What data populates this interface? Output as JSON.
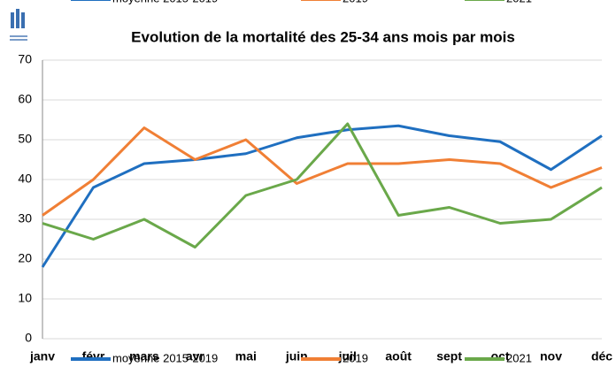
{
  "chart_data": {
    "type": "line",
    "title": "Evolution de la mortalité des 25-34 ans mois par mois",
    "categories": [
      "janv",
      "févr",
      "mars",
      "avr",
      "mai",
      "juin",
      "juil",
      "août",
      "sept",
      "oct",
      "nov",
      "déc"
    ],
    "series": [
      {
        "name": "moyenne 2015-2019",
        "color": "#1f6fc0",
        "values": [
          18,
          38,
          44,
          45,
          46.5,
          50.5,
          52.5,
          53.5,
          51,
          49.5,
          42.5,
          51
        ]
      },
      {
        "name": "2019",
        "color": "#f07f35",
        "values": [
          31,
          40,
          53,
          45,
          50,
          39,
          44,
          44,
          45,
          44,
          38,
          43
        ]
      },
      {
        "name": "2021",
        "color": "#6aa84a",
        "values": [
          29,
          25,
          30,
          23,
          36,
          40,
          54,
          31,
          33,
          29,
          30,
          38
        ]
      }
    ],
    "ylim": [
      0,
      70
    ],
    "yticks": [
      0,
      10,
      20,
      30,
      40,
      50,
      60,
      70
    ],
    "grid": true,
    "legend": "bottom"
  }
}
